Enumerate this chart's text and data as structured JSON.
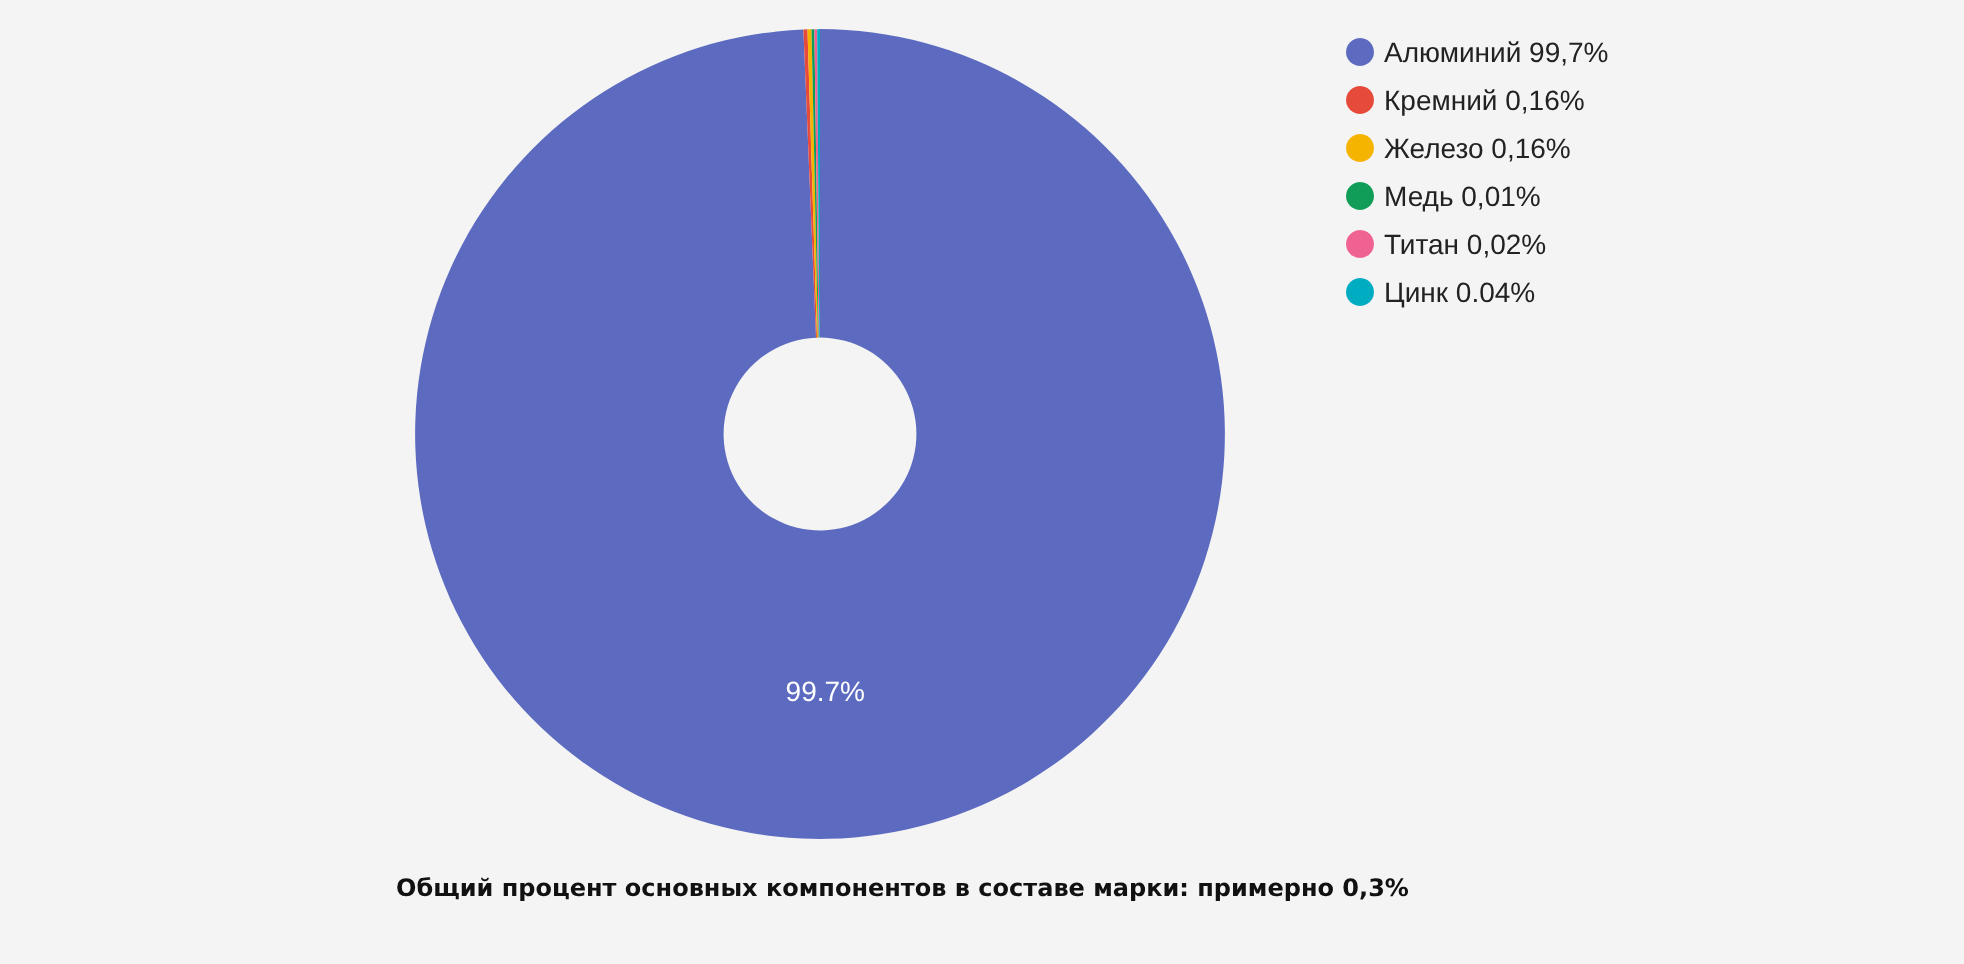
{
  "chart_data": {
    "type": "donut",
    "categories": [
      "Алюминий 99,7%",
      "Кремний 0,16%",
      "Железо 0,16%",
      "Медь 0,01%",
      "Титан 0,02%",
      "Цинк 0.04%"
    ],
    "values": [
      99.7,
      0.16,
      0.16,
      0.01,
      0.02,
      0.04
    ],
    "colors": [
      "#5c6bc0",
      "#e64a3b",
      "#f4b400",
      "#0f9d58",
      "#f06292",
      "#00acc1"
    ],
    "value_labels": [
      "99.7%",
      null,
      null,
      null,
      null,
      null
    ],
    "legend": "top right",
    "annotations": [
      "Общий процент основных компонентов в составе марки: примерно 0,3%"
    ]
  }
}
